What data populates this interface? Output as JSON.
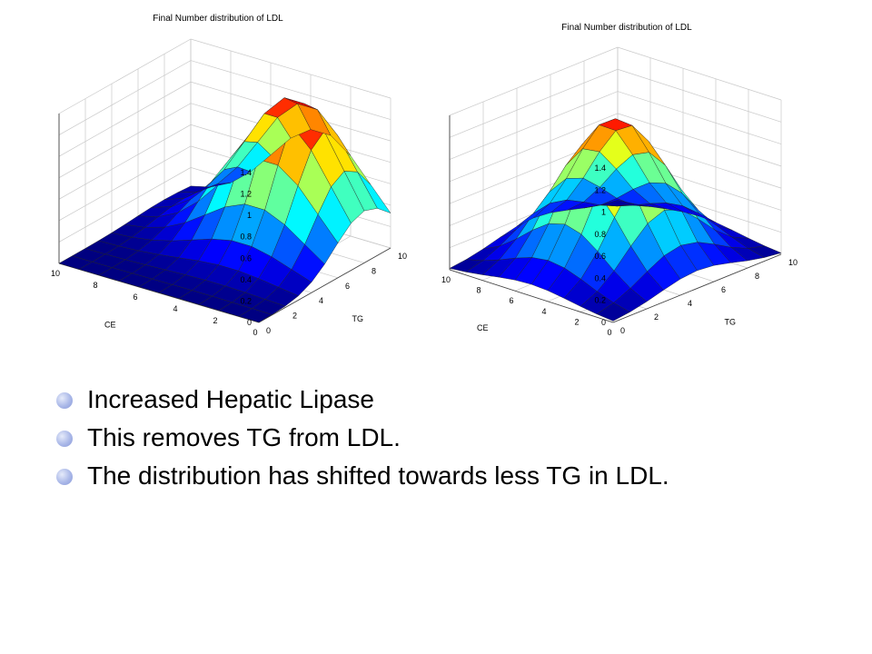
{
  "chart_data": [
    {
      "type": "surface",
      "title": "Final Number distribution of LDL",
      "xlabel": "CE",
      "ylabel": "TG",
      "zlabel": "",
      "xlim": [
        0,
        10
      ],
      "ylim": [
        0,
        10
      ],
      "zlim": [
        0,
        1.4
      ],
      "x_ticks": [
        "0",
        "2",
        "4",
        "6",
        "8",
        "10"
      ],
      "y_ticks": [
        "0",
        "2",
        "4",
        "6",
        "8",
        "10"
      ],
      "z_ticks": [
        "0",
        "0.2",
        "0.4",
        "0.6",
        "0.8",
        "1",
        "1.2",
        "1.4"
      ],
      "grid": true,
      "peak": {
        "x": 3.5,
        "y": 8.0,
        "z": 1.35
      }
    },
    {
      "type": "surface",
      "title": "Final Number distribution of LDL",
      "xlabel": "CE",
      "ylabel": "TG",
      "zlabel": "",
      "xlim": [
        0,
        10
      ],
      "ylim": [
        0,
        10
      ],
      "zlim": [
        0,
        1.4
      ],
      "x_ticks": [
        "0",
        "2",
        "4",
        "6",
        "8",
        "10"
      ],
      "y_ticks": [
        "0",
        "2",
        "4",
        "6",
        "8",
        "10"
      ],
      "z_ticks": [
        "0",
        "0.2",
        "0.4",
        "0.6",
        "0.8",
        "1",
        "1.2",
        "1.4"
      ],
      "grid": true,
      "peak": {
        "x": 5.0,
        "y": 5.0,
        "z": 1.3
      }
    }
  ],
  "bullets": [
    "Increased Hepatic Lipase",
    "This removes TG from LDL.",
    "The distribution has shifted towards less TG in LDL."
  ],
  "colors": {
    "bullet": "#aab8e8"
  }
}
